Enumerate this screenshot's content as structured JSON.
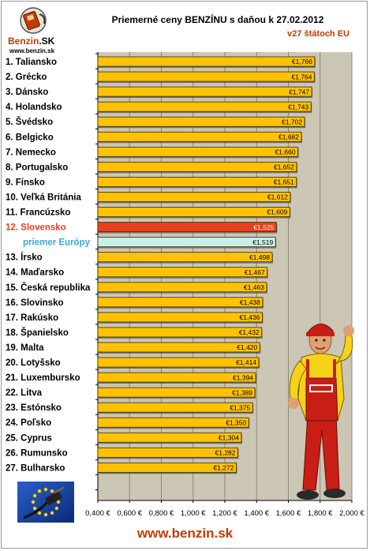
{
  "header": {
    "title": "Priemerné ceny BENZÍNU s daňou k 27.02.2012",
    "subtitle": "v27 štátoch EU",
    "logo_text": "Benzin",
    "logo_sk": ".SK",
    "logo_url": "www.benzin.sk"
  },
  "footer": {
    "url": "www.benzin.sk"
  },
  "colors": {
    "bar": "#ffc200",
    "bar_highlight": "#e8401c",
    "bar_average": "#c8f0ea",
    "plot_bg": "#ccc6b4",
    "label_highlight": "#e8401c",
    "label_average": "#3aa8d8",
    "footer_text": "#c23b00"
  },
  "icons": [
    "benzin-logo-icon",
    "eu-flag-fuel-nozzle-icon",
    "gas-station-mechanic-figure"
  ],
  "chart_data": {
    "type": "bar",
    "orientation": "horizontal",
    "title": "Priemerné ceny BENZÍNU s daňou k 27.02.2012",
    "subtitle": "v27 štátoch EU",
    "xlim": [
      0.4,
      2.0
    ],
    "xticks": [
      "0,400 €",
      "0,600 €",
      "0,800 €",
      "1,000 €",
      "1,200 €",
      "1,400 €",
      "1,600 €",
      "1,800 €",
      "2,000 €"
    ],
    "xtick_values": [
      0.4,
      0.6,
      0.8,
      1.0,
      1.2,
      1.4,
      1.6,
      1.8,
      2.0
    ],
    "grid": "vertical",
    "categories": [
      "1. Taliansko",
      "2. Grécko",
      "3. Dánsko",
      "4. Holandsko",
      "5. Švédsko",
      "6. Belgicko",
      "7. Nemecko",
      "8. Portugalsko",
      "9. Fínsko",
      "10. Veľká Británia",
      "11. Francúzsko",
      "12. Slovensko",
      "priemer Európy",
      "13. Írsko",
      "14. Maďarsko",
      "15. Česká republika",
      "16. Slovinsko",
      "17. Rakúsko",
      "18. Španielsko",
      "19. Malta",
      "20. Lotyšsko",
      "21. Luxembursko",
      "22. Litva",
      "23. Estónsko",
      "24. Poľsko",
      "25. Cyprus",
      "26. Rumunsko",
      "27. Bulharsko"
    ],
    "values": [
      1.766,
      1.764,
      1.747,
      1.743,
      1.702,
      1.682,
      1.66,
      1.652,
      1.651,
      1.612,
      1.609,
      1.525,
      1.519,
      1.498,
      1.467,
      1.463,
      1.438,
      1.436,
      1.432,
      1.42,
      1.414,
      1.394,
      1.389,
      1.375,
      1.35,
      1.304,
      1.282,
      1.272
    ],
    "value_labels": [
      "€1,766",
      "€1,764",
      "€1,747",
      "€1,743",
      "€1,702",
      "€1,682",
      "€1,660",
      "€1,652",
      "€1,651",
      "€1,612",
      "€1,609",
      "€1,525",
      "€1,519",
      "€1,498",
      "€1,467",
      "€1,463",
      "€1,438",
      "€1,436",
      "€1,432",
      "€1,420",
      "€1,414",
      "€1,394",
      "€1,389",
      "€1,375",
      "€1,350",
      "€1,304",
      "€1,282",
      "€1,272"
    ],
    "highlight_index": 11,
    "average_index": 12
  }
}
